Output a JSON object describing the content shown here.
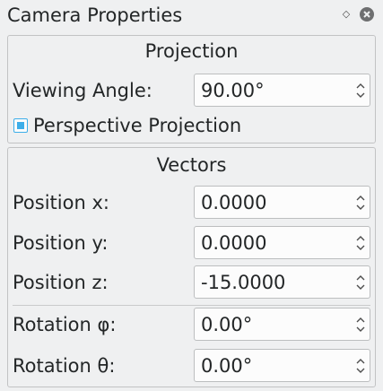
{
  "panel": {
    "title": "Camera Properties",
    "float_icon": "diamond-float-icon",
    "close_icon": "close-circle-icon"
  },
  "projection": {
    "group_title": "Projection",
    "viewing_angle_label": "Viewing Angle:",
    "viewing_angle_value": "90.00°",
    "perspective_label": "Perspective Projection",
    "perspective_checked": true
  },
  "vectors": {
    "group_title": "Vectors",
    "position_x_label": "Position x:",
    "position_x_value": "0.0000",
    "position_y_label": "Position y:",
    "position_y_value": "0.0000",
    "position_z_label": "Position z:",
    "position_z_value": "-15.0000",
    "rotation_phi_label": "Rotation φ:",
    "rotation_phi_value": "0.00°",
    "rotation_theta_label": "Rotation θ:",
    "rotation_theta_value": "0.00°"
  },
  "colors": {
    "background": "#eff0f1",
    "accent": "#3daee9",
    "field_background": "#fcfcfc",
    "text": "#232627"
  }
}
